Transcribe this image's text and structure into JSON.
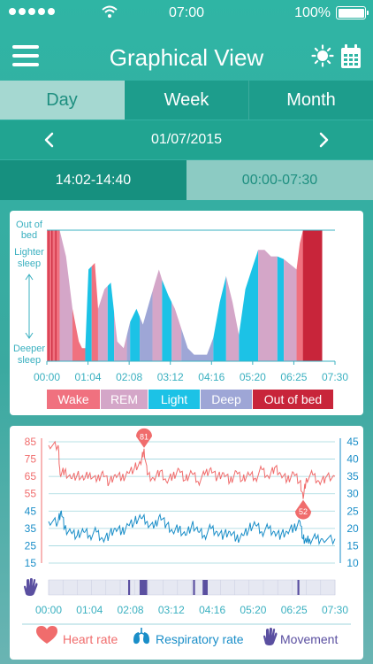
{
  "status_bar": {
    "time": "07:00",
    "battery": "100%"
  },
  "nav": {
    "title": "Graphical View",
    "menu_icon": "menu-icon",
    "sun_icon": "sun-icon",
    "calendar_icon": "calendar-icon"
  },
  "tabs": [
    {
      "label": "Day",
      "active": true
    },
    {
      "label": "Week",
      "active": false
    },
    {
      "label": "Month",
      "active": false
    }
  ],
  "date_nav": {
    "date": "01/07/2015"
  },
  "ranges": [
    {
      "label": "14:02-14:40",
      "active": true
    },
    {
      "label": "00:00-07:30",
      "active": false
    }
  ],
  "colors": {
    "wake": "#f0717f",
    "rem": "#d4a6c8",
    "light": "#1cc2e6",
    "deep": "#9ea6d6",
    "out_of_bed": "#c8253a",
    "heart": "#f06c6c",
    "resp": "#1a8ec8",
    "movement": "#5a4fa0",
    "axis": "#3ab0c0"
  },
  "chart_data": [
    {
      "type": "area",
      "title": "",
      "ylabel_levels": [
        "Out of bed",
        "Lighter sleep",
        "Deeper sleep"
      ],
      "x_ticks": [
        "00:00",
        "01:04",
        "02:08",
        "03:12",
        "04:16",
        "05:20",
        "06:25",
        "07:30"
      ],
      "xlim": [
        0,
        450
      ],
      "ylim": [
        0,
        100
      ],
      "legend": [
        "Wake",
        "REM",
        "Light",
        "Deep",
        "Out of bed"
      ],
      "legend_placement": "bottom",
      "depth_curve_minutes": [
        0,
        20,
        30,
        40,
        50,
        55,
        60,
        65,
        75,
        80,
        90,
        100,
        110,
        120,
        130,
        140,
        150,
        160,
        170,
        175,
        180,
        190,
        200,
        210,
        220,
        230,
        240,
        250,
        260,
        270,
        280,
        290,
        300,
        310,
        320,
        330,
        340,
        350,
        360,
        370,
        380,
        385,
        390,
        395,
        400,
        410,
        420,
        430,
        440,
        450
      ],
      "depth_curve_values": [
        100,
        100,
        80,
        40,
        15,
        10,
        10,
        70,
        75,
        40,
        55,
        60,
        15,
        10,
        30,
        40,
        28,
        45,
        62,
        70,
        62,
        50,
        40,
        25,
        10,
        5,
        5,
        5,
        18,
        45,
        65,
        45,
        20,
        55,
        70,
        85,
        85,
        80,
        80,
        78,
        74,
        72,
        70,
        90,
        100,
        100,
        100,
        100,
        100,
        100
      ],
      "segments": [
        {
          "stage": "wake",
          "start": 0,
          "end": 20
        },
        {
          "stage": "rem",
          "start": 20,
          "end": 40
        },
        {
          "stage": "wake",
          "start": 40,
          "end": 60
        },
        {
          "stage": "light",
          "start": 60,
          "end": 70
        },
        {
          "stage": "wake",
          "start": 70,
          "end": 80
        },
        {
          "stage": "rem",
          "start": 80,
          "end": 95
        },
        {
          "stage": "light",
          "start": 95,
          "end": 105
        },
        {
          "stage": "rem",
          "start": 105,
          "end": 125
        },
        {
          "stage": "deep",
          "start": 125,
          "end": 130
        },
        {
          "stage": "light",
          "start": 130,
          "end": 145
        },
        {
          "stage": "deep",
          "start": 145,
          "end": 165
        },
        {
          "stage": "rem",
          "start": 165,
          "end": 180
        },
        {
          "stage": "light",
          "start": 180,
          "end": 195
        },
        {
          "stage": "rem",
          "start": 195,
          "end": 210
        },
        {
          "stage": "deep",
          "start": 210,
          "end": 260
        },
        {
          "stage": "light",
          "start": 260,
          "end": 280
        },
        {
          "stage": "rem",
          "start": 280,
          "end": 300
        },
        {
          "stage": "light",
          "start": 300,
          "end": 330
        },
        {
          "stage": "rem",
          "start": 330,
          "end": 360
        },
        {
          "stage": "light",
          "start": 360,
          "end": 370
        },
        {
          "stage": "rem",
          "start": 370,
          "end": 390
        },
        {
          "stage": "wake",
          "start": 390,
          "end": 400
        },
        {
          "stage": "out_of_bed",
          "start": 400,
          "end": 430
        }
      ]
    },
    {
      "type": "line",
      "title": "",
      "x_ticks": [
        "00:00",
        "01:04",
        "02:08",
        "03:12",
        "04:16",
        "05:20",
        "06:25",
        "07:30"
      ],
      "xlim": [
        0,
        450
      ],
      "left_ticks": [
        85,
        75,
        65,
        55,
        45,
        35,
        25,
        15
      ],
      "left_ylim": [
        15,
        85
      ],
      "right_ticks": [
        45,
        40,
        35,
        30,
        25,
        20,
        15,
        10
      ],
      "right_ylim": [
        10,
        45
      ],
      "legend": [
        "Heart rate",
        "Respiratory rate",
        "Movement"
      ],
      "legend_placement": "bottom",
      "annotations": [
        {
          "label": "81",
          "x": 150,
          "value": 81,
          "series": "Heart rate"
        },
        {
          "label": "52",
          "x": 400,
          "value": 52,
          "series": "Heart rate"
        }
      ],
      "series": [
        {
          "name": "Heart rate",
          "axis": "left",
          "x": [
            0,
            15,
            18,
            25,
            35,
            45,
            55,
            65,
            75,
            85,
            95,
            105,
            115,
            125,
            135,
            145,
            150,
            155,
            165,
            175,
            185,
            195,
            205,
            215,
            225,
            235,
            245,
            255,
            265,
            275,
            285,
            295,
            305,
            315,
            325,
            335,
            345,
            355,
            365,
            375,
            385,
            395,
            400,
            405,
            415,
            425,
            435,
            450
          ],
          "values": [
            83,
            83,
            66,
            68,
            64,
            66,
            63,
            67,
            62,
            68,
            61,
            66,
            64,
            67,
            70,
            72,
            81,
            66,
            64,
            68,
            62,
            65,
            69,
            63,
            67,
            62,
            66,
            70,
            64,
            67,
            62,
            68,
            63,
            66,
            64,
            69,
            65,
            70,
            66,
            63,
            67,
            62,
            52,
            64,
            66,
            62,
            64,
            65
          ]
        },
        {
          "name": "Respiratory rate",
          "axis": "right",
          "x": [
            0,
            15,
            20,
            25,
            35,
            45,
            55,
            65,
            75,
            85,
            95,
            105,
            115,
            125,
            135,
            145,
            155,
            165,
            175,
            185,
            195,
            205,
            215,
            225,
            235,
            245,
            255,
            265,
            275,
            285,
            295,
            305,
            315,
            325,
            335,
            345,
            355,
            365,
            375,
            385,
            395,
            400,
            405,
            410,
            420,
            430,
            450
          ],
          "values": [
            22,
            22,
            25,
            20,
            19,
            18,
            19,
            18,
            19,
            17,
            18,
            20,
            19,
            21,
            22,
            23,
            22,
            20,
            24,
            21,
            19,
            20,
            18,
            21,
            19,
            18,
            20,
            19,
            18,
            19,
            17,
            18,
            20,
            21,
            19,
            20,
            19,
            18,
            19,
            20,
            22,
            17,
            16,
            17,
            17,
            17,
            17
          ]
        },
        {
          "name": "Movement",
          "axis": "none",
          "events": [
            {
              "start": 125,
              "end": 128
            },
            {
              "start": 143,
              "end": 155
            },
            {
              "start": 227,
              "end": 230
            },
            {
              "start": 242,
              "end": 250
            },
            {
              "start": 391,
              "end": 394
            }
          ]
        }
      ]
    }
  ]
}
